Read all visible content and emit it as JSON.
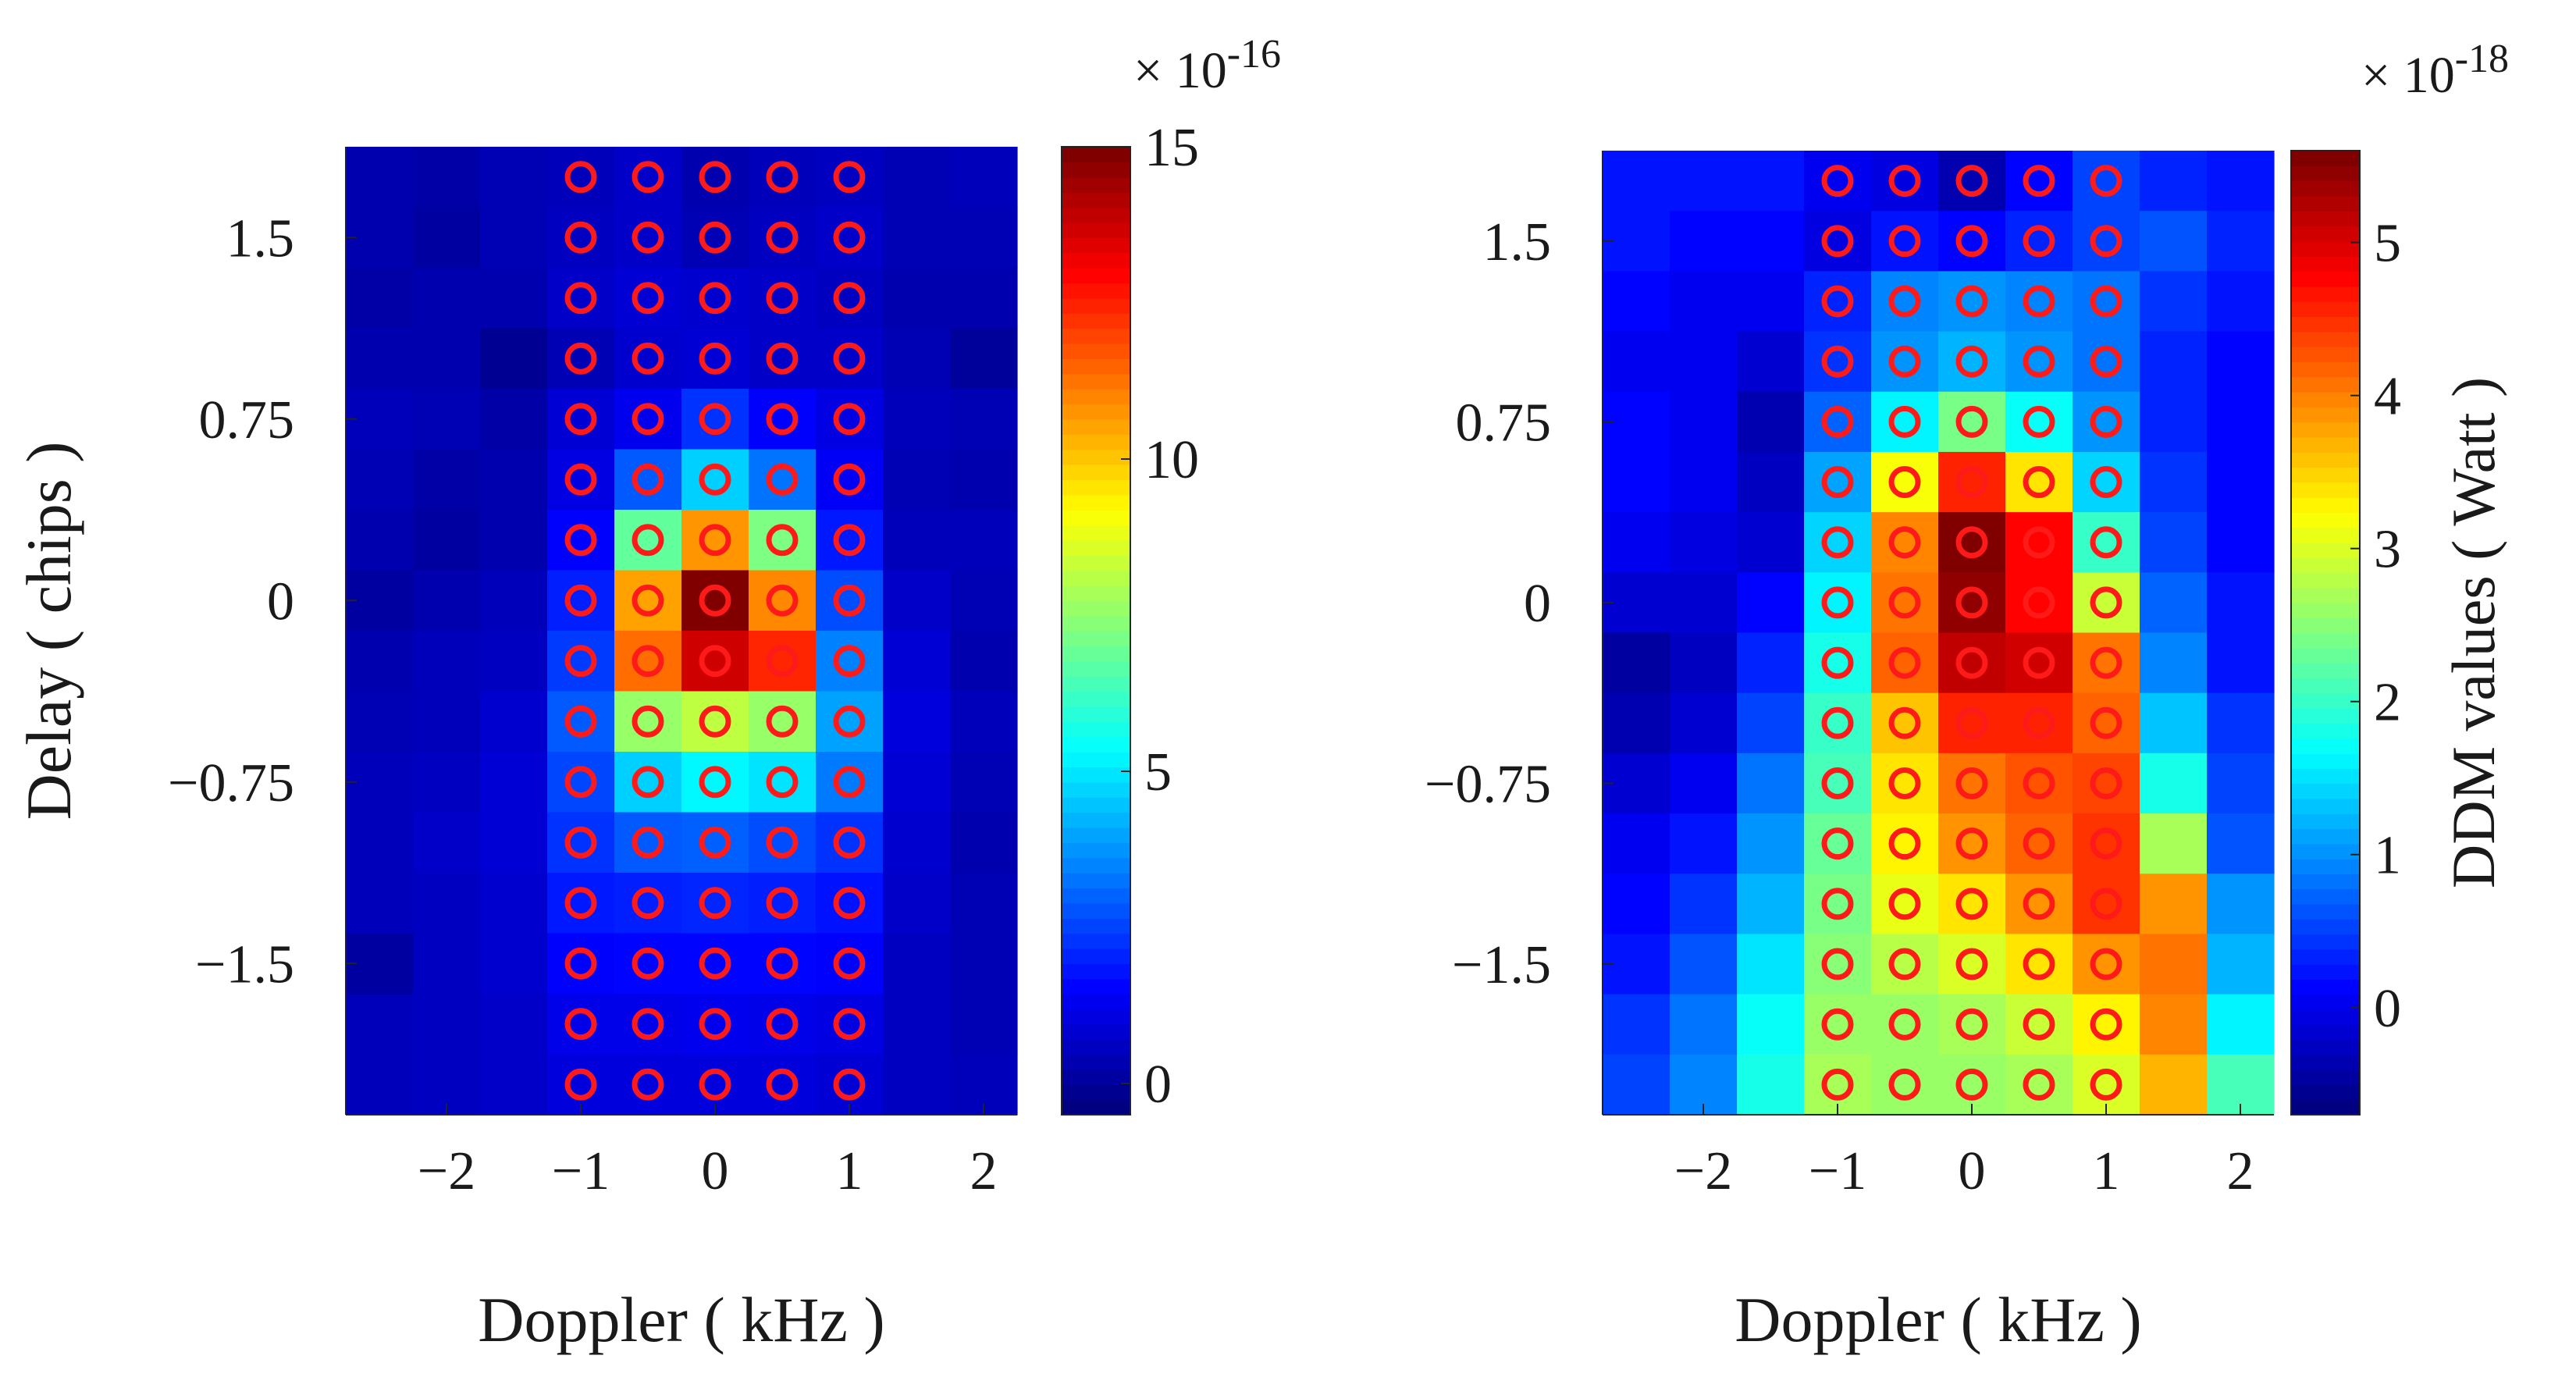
{
  "chart_data": [
    {
      "type": "heatmap",
      "id": "left",
      "xlabel": "Doppler ( kHz )",
      "ylabel": "Delay ( chips )",
      "xticks": [
        -2,
        -1,
        0,
        1,
        2
      ],
      "xtick_labels": [
        "−2",
        "−1",
        "0",
        "1",
        "2"
      ],
      "yticks": [
        1.5,
        0.75,
        0,
        -0.75,
        -1.5
      ],
      "ytick_labels": [
        "1.5",
        "0.75",
        "0",
        "−0.75",
        "−1.5"
      ],
      "doppler_range_khz": [
        -2.75,
        2.25
      ],
      "delay_range_chips": [
        -2.125,
        1.875
      ],
      "doppler_bins_khz": [
        -2.5,
        -2.0,
        -1.5,
        -1.0,
        -0.5,
        0.0,
        0.5,
        1.0,
        1.5,
        2.0
      ],
      "delay_bins_chips": [
        1.75,
        1.5,
        1.25,
        1.0,
        0.75,
        0.5,
        0.25,
        0.0,
        -0.25,
        -0.5,
        -0.75,
        -1.0,
        -1.25,
        -1.5,
        -1.75,
        -2.0
      ],
      "colorbar": {
        "clim": [
          -0.5,
          15
        ],
        "ticks": [
          0,
          5,
          10,
          15
        ],
        "tick_labels": [
          "0",
          "5",
          "10",
          "15"
        ],
        "exponent_prefix": "× 10",
        "exponent": "-16",
        "label": ""
      },
      "values": [
        [
          0.2,
          0.1,
          0.3,
          0.4,
          0.6,
          0.2,
          0.4,
          0.5,
          0.3,
          0.4
        ],
        [
          0.2,
          0.0,
          0.3,
          0.5,
          0.6,
          0.3,
          0.5,
          0.6,
          0.3,
          0.3
        ],
        [
          0.1,
          0.2,
          0.2,
          0.6,
          0.8,
          0.7,
          0.6,
          0.5,
          0.2,
          0.2
        ],
        [
          0.2,
          0.2,
          -0.2,
          0.3,
          0.7,
          0.8,
          0.6,
          0.6,
          0.3,
          -0.1
        ],
        [
          0.4,
          0.3,
          0.1,
          0.8,
          1.2,
          2.2,
          1.4,
          1.0,
          0.4,
          0.3
        ],
        [
          0.3,
          0.1,
          0.2,
          1.0,
          2.8,
          4.6,
          3.2,
          1.3,
          0.3,
          0.2
        ],
        [
          0.2,
          0.0,
          0.2,
          1.4,
          6.8,
          10.8,
          7.2,
          1.8,
          0.4,
          0.4
        ],
        [
          0.0,
          0.2,
          0.4,
          1.9,
          10.6,
          15.0,
          11.0,
          2.6,
          0.6,
          0.3
        ],
        [
          0.2,
          0.4,
          0.5,
          2.3,
          11.4,
          13.8,
          12.5,
          3.4,
          0.8,
          0.2
        ],
        [
          0.3,
          0.4,
          0.7,
          2.8,
          7.6,
          8.2,
          7.6,
          3.9,
          0.9,
          0.4
        ],
        [
          0.4,
          0.5,
          0.8,
          2.5,
          4.6,
          5.2,
          4.9,
          3.3,
          0.8,
          0.3
        ],
        [
          0.4,
          0.6,
          0.8,
          2.2,
          2.8,
          2.9,
          2.6,
          2.2,
          0.7,
          0.2
        ],
        [
          0.4,
          0.5,
          0.7,
          1.8,
          1.9,
          2.0,
          1.9,
          1.7,
          0.6,
          0.3
        ],
        [
          0.0,
          0.5,
          0.7,
          1.4,
          1.5,
          1.5,
          1.5,
          1.4,
          0.5,
          0.3
        ],
        [
          0.4,
          0.5,
          0.6,
          1.1,
          1.1,
          1.2,
          1.1,
          1.0,
          0.5,
          0.3
        ],
        [
          0.4,
          0.5,
          0.6,
          0.9,
          0.9,
          0.9,
          0.9,
          0.8,
          0.5,
          0.4
        ]
      ],
      "markers": {
        "color": "#ff1a1a",
        "doppler_khz": [
          -1.0,
          -0.5,
          0.0,
          0.5,
          1.0
        ],
        "delay_chips": [
          1.75,
          1.5,
          1.25,
          1.0,
          0.75,
          0.5,
          0.25,
          0.0,
          -0.25,
          -0.5,
          -0.75,
          -1.0,
          -1.25,
          -1.5,
          -1.75,
          -2.0
        ]
      }
    },
    {
      "type": "heatmap",
      "id": "right",
      "xlabel": "Doppler ( kHz )",
      "ylabel": "",
      "xticks": [
        -2,
        -1,
        0,
        1,
        2
      ],
      "xtick_labels": [
        "−2",
        "−1",
        "0",
        "1",
        "2"
      ],
      "yticks": [
        1.5,
        0.75,
        0,
        -0.75,
        -1.5
      ],
      "ytick_labels": [
        "1.5",
        "0.75",
        "0",
        "−0.75",
        "−1.5"
      ],
      "doppler_range_khz": [
        -2.75,
        2.25
      ],
      "delay_range_chips": [
        -2.125,
        1.875
      ],
      "doppler_bins_khz": [
        -2.5,
        -2.0,
        -1.5,
        -1.0,
        -0.5,
        0.0,
        0.5,
        1.0,
        1.5,
        2.0
      ],
      "delay_bins_chips": [
        1.75,
        1.5,
        1.25,
        1.0,
        0.75,
        0.5,
        0.25,
        0.0,
        -0.25,
        -0.5,
        -0.75,
        -1.0,
        -1.25,
        -1.5,
        -1.75,
        -2.0
      ],
      "colorbar": {
        "clim": [
          -0.7,
          5.6
        ],
        "ticks": [
          0,
          1,
          2,
          3,
          4,
          5
        ],
        "tick_labels": [
          "0",
          "1",
          "2",
          "3",
          "4",
          "5"
        ],
        "exponent_prefix": "× 10",
        "exponent": "-18",
        "label": "DDM values ( Watt )"
      },
      "values": [
        [
          0.2,
          0.2,
          0.2,
          0.0,
          -0.1,
          -0.4,
          0.1,
          0.5,
          0.3,
          0.2
        ],
        [
          0.2,
          0.1,
          0.1,
          -0.1,
          0.2,
          0.1,
          0.3,
          0.5,
          0.6,
          0.3
        ],
        [
          0.1,
          0.0,
          0.0,
          0.3,
          0.9,
          1.0,
          0.9,
          0.8,
          0.4,
          0.2
        ],
        [
          0.0,
          0.0,
          -0.2,
          0.4,
          1.0,
          1.2,
          1.0,
          0.8,
          0.3,
          0.1
        ],
        [
          0.1,
          0.0,
          -0.4,
          0.7,
          1.6,
          2.4,
          1.7,
          1.0,
          0.3,
          0.1
        ],
        [
          0.1,
          0.0,
          -0.3,
          1.1,
          3.2,
          4.6,
          3.4,
          1.4,
          0.4,
          0.1
        ],
        [
          0.0,
          -0.1,
          -0.2,
          1.4,
          4.0,
          5.6,
          4.8,
          2.0,
          0.5,
          0.1
        ],
        [
          -0.2,
          -0.2,
          0.1,
          1.6,
          4.1,
          5.5,
          4.8,
          2.9,
          0.7,
          0.2
        ],
        [
          -0.5,
          -0.3,
          0.3,
          1.8,
          4.2,
          5.2,
          5.1,
          4.1,
          0.9,
          0.2
        ],
        [
          -0.4,
          -0.2,
          0.5,
          2.0,
          3.6,
          4.6,
          4.6,
          4.2,
          1.3,
          0.4
        ],
        [
          -0.2,
          0.0,
          0.8,
          2.1,
          3.4,
          4.1,
          4.3,
          4.4,
          1.8,
          0.5
        ],
        [
          0.0,
          0.2,
          1.0,
          2.3,
          3.3,
          3.9,
          4.2,
          4.5,
          2.7,
          0.6
        ],
        [
          0.1,
          0.4,
          1.2,
          2.4,
          3.1,
          3.4,
          3.9,
          4.5,
          3.9,
          1.0
        ],
        [
          0.2,
          0.6,
          1.5,
          2.5,
          2.8,
          3.0,
          3.4,
          3.9,
          4.1,
          1.2
        ],
        [
          0.4,
          0.8,
          1.7,
          2.6,
          2.6,
          2.7,
          2.9,
          3.3,
          4.0,
          1.6
        ],
        [
          0.5,
          0.9,
          1.8,
          2.7,
          2.6,
          2.6,
          2.7,
          3.0,
          3.7,
          2.1
        ]
      ],
      "markers": {
        "color": "#ff1a1a",
        "doppler_khz": [
          -1.0,
          -0.5,
          0.0,
          0.5,
          1.0
        ],
        "delay_chips": [
          1.75,
          1.5,
          1.25,
          1.0,
          0.75,
          0.5,
          0.25,
          0.0,
          -0.25,
          -0.5,
          -0.75,
          -1.0,
          -1.25,
          -1.5,
          -1.75,
          -2.0
        ]
      }
    }
  ]
}
